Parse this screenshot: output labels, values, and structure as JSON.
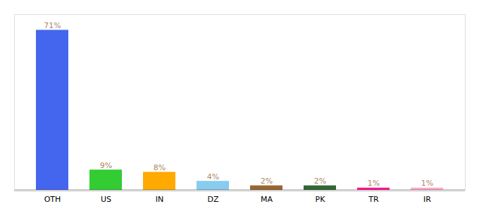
{
  "chart_data": {
    "type": "bar",
    "categories": [
      "OTH",
      "US",
      "IN",
      "DZ",
      "MA",
      "PK",
      "TR",
      "IR"
    ],
    "values": [
      71,
      9,
      8,
      4,
      2,
      2,
      1,
      1
    ],
    "value_labels": [
      "71%",
      "9%",
      "8%",
      "4%",
      "2%",
      "2%",
      "1%",
      "1%"
    ],
    "colors": [
      "#4466ee",
      "#33cc33",
      "#ffaa00",
      "#88ccee",
      "#996633",
      "#336633",
      "#ff1493",
      "#ffaacc"
    ],
    "ylim": [
      0,
      78
    ],
    "grid": false,
    "data_labels": true,
    "tick_labels": "x"
  }
}
